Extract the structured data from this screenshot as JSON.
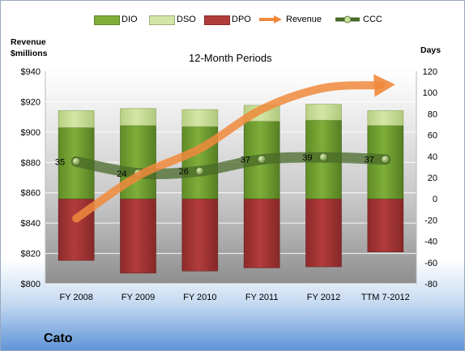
{
  "company": "Cato",
  "colors": {
    "dio": "#7fae3a",
    "dso": "#d4e6a6",
    "dpo": "#b23c3c",
    "revenue": "#f08a3c",
    "ccc": "#4a6a2a"
  },
  "legend": [
    {
      "key": "dio",
      "label": "DIO"
    },
    {
      "key": "dso",
      "label": "DSO"
    },
    {
      "key": "dpo",
      "label": "DPO"
    },
    {
      "key": "revenue",
      "label": "Revenue"
    },
    {
      "key": "ccc",
      "label": "CCC"
    }
  ],
  "chart_data": {
    "type": "bar",
    "title": "12-Month Periods",
    "left_axis_title": "Revenue $millions",
    "right_axis_title": "Days",
    "categories": [
      "FY 2008",
      "FY 2009",
      "FY 2010",
      "FY 2011",
      "FY 2012",
      "TTM 7-2012"
    ],
    "y_left": {
      "min": 800,
      "max": 940,
      "step": 20,
      "prefix": "$"
    },
    "y_right": {
      "min": -80,
      "max": 120,
      "step": 20
    },
    "series": [
      {
        "name": "DIO",
        "values": [
          67,
          69,
          68,
          73,
          74,
          69
        ]
      },
      {
        "name": "DSO",
        "values": [
          16,
          16,
          16,
          15,
          15,
          14
        ]
      },
      {
        "name": "DPO",
        "values": [
          -58,
          -70,
          -68,
          -65,
          -64,
          -50
        ]
      },
      {
        "name": "Revenue",
        "values": [
          843,
          871,
          889,
          915,
          929,
          931
        ]
      },
      {
        "name": "CCC",
        "values": [
          35,
          24,
          26,
          37,
          39,
          37
        ],
        "show_labels": true
      }
    ],
    "grid": true,
    "legend_position": "top"
  }
}
